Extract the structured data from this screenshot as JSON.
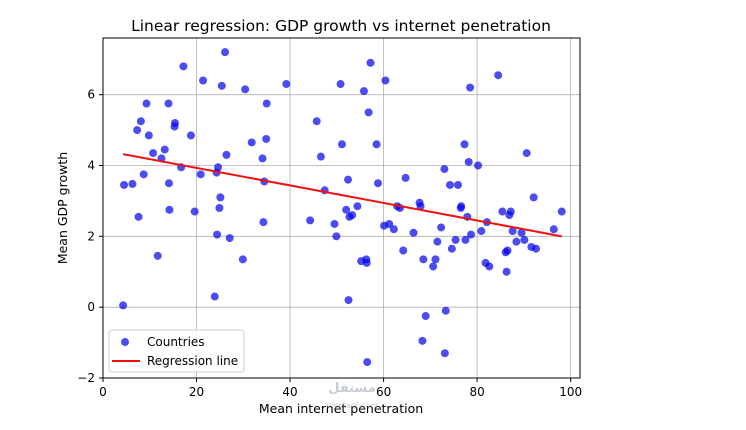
{
  "chart_data": {
    "type": "scatter",
    "title": "Linear regression: GDP growth vs internet penetration",
    "xlabel": "Mean internet penetration",
    "ylabel": "Mean GDP growth",
    "xlim": [
      0,
      102
    ],
    "ylim": [
      -2,
      7.6
    ],
    "xticks": [
      0,
      20,
      40,
      60,
      80,
      100
    ],
    "yticks": [
      -2,
      0,
      2,
      4,
      6
    ],
    "grid": true,
    "legend_position": "lower-left",
    "series": [
      {
        "name": "Countries",
        "kind": "scatter",
        "color": "#0000ee",
        "points": [
          [
            4.3,
            0.05
          ],
          [
            4.5,
            3.45
          ],
          [
            6.3,
            3.48
          ],
          [
            7.3,
            5.0
          ],
          [
            7.6,
            2.55
          ],
          [
            8.1,
            5.25
          ],
          [
            8.7,
            3.75
          ],
          [
            9.3,
            5.75
          ],
          [
            9.8,
            4.85
          ],
          [
            10.7,
            4.35
          ],
          [
            11.7,
            1.45
          ],
          [
            12.5,
            4.2
          ],
          [
            13.2,
            4.45
          ],
          [
            14.0,
            5.75
          ],
          [
            14.1,
            3.5
          ],
          [
            14.2,
            2.75
          ],
          [
            15.3,
            5.1
          ],
          [
            15.4,
            5.2
          ],
          [
            16.7,
            3.95
          ],
          [
            17.2,
            6.8
          ],
          [
            18.8,
            4.85
          ],
          [
            19.6,
            2.7
          ],
          [
            20.9,
            3.75
          ],
          [
            21.4,
            6.4
          ],
          [
            23.9,
            0.3
          ],
          [
            24.3,
            3.8
          ],
          [
            24.4,
            2.05
          ],
          [
            24.6,
            3.95
          ],
          [
            24.9,
            2.8
          ],
          [
            25.1,
            3.1
          ],
          [
            25.4,
            6.25
          ],
          [
            26.1,
            7.2
          ],
          [
            26.4,
            4.3
          ],
          [
            27.1,
            1.95
          ],
          [
            29.9,
            1.35
          ],
          [
            30.4,
            6.15
          ],
          [
            31.8,
            4.65
          ],
          [
            34.1,
            4.2
          ],
          [
            34.3,
            2.4
          ],
          [
            34.5,
            3.55
          ],
          [
            34.9,
            4.75
          ],
          [
            35.0,
            5.75
          ],
          [
            39.2,
            6.3
          ],
          [
            44.3,
            2.45
          ],
          [
            45.7,
            5.25
          ],
          [
            46.6,
            4.25
          ],
          [
            47.4,
            3.3
          ],
          [
            49.5,
            2.35
          ],
          [
            49.9,
            2.0
          ],
          [
            50.8,
            6.3
          ],
          [
            51.1,
            4.6
          ],
          [
            52.0,
            2.75
          ],
          [
            52.4,
            3.6
          ],
          [
            52.5,
            0.2
          ],
          [
            52.7,
            2.55
          ],
          [
            53.3,
            2.6
          ],
          [
            54.4,
            2.85
          ],
          [
            55.2,
            1.3
          ],
          [
            55.8,
            6.1
          ],
          [
            56.3,
            1.35
          ],
          [
            56.4,
            1.25
          ],
          [
            56.5,
            -1.55
          ],
          [
            56.8,
            5.5
          ],
          [
            57.2,
            6.9
          ],
          [
            58.5,
            4.6
          ],
          [
            58.8,
            3.5
          ],
          [
            60.1,
            2.3
          ],
          [
            60.4,
            6.4
          ],
          [
            61.2,
            2.35
          ],
          [
            62.2,
            2.2
          ],
          [
            62.9,
            2.85
          ],
          [
            63.5,
            2.8
          ],
          [
            64.2,
            1.6
          ],
          [
            64.7,
            3.65
          ],
          [
            66.4,
            2.1
          ],
          [
            67.7,
            2.95
          ],
          [
            67.9,
            2.85
          ],
          [
            68.3,
            -0.95
          ],
          [
            68.5,
            1.35
          ],
          [
            69.0,
            -0.25
          ],
          [
            70.6,
            1.15
          ],
          [
            71.1,
            1.35
          ],
          [
            71.5,
            1.85
          ],
          [
            72.3,
            2.25
          ],
          [
            73.0,
            3.9
          ],
          [
            73.1,
            -1.3
          ],
          [
            73.3,
            -0.1
          ],
          [
            74.2,
            3.45
          ],
          [
            74.6,
            1.65
          ],
          [
            75.4,
            1.9
          ],
          [
            75.9,
            3.45
          ],
          [
            76.5,
            2.8
          ],
          [
            76.6,
            2.85
          ],
          [
            77.3,
            4.6
          ],
          [
            77.5,
            1.9
          ],
          [
            77.9,
            2.55
          ],
          [
            78.2,
            4.1
          ],
          [
            78.5,
            6.2
          ],
          [
            78.7,
            2.05
          ],
          [
            80.2,
            4.0
          ],
          [
            80.9,
            2.15
          ],
          [
            81.8,
            1.25
          ],
          [
            82.1,
            2.4
          ],
          [
            82.6,
            1.15
          ],
          [
            84.5,
            6.55
          ],
          [
            85.4,
            2.7
          ],
          [
            86.1,
            1.55
          ],
          [
            86.3,
            1.0
          ],
          [
            86.5,
            1.6
          ],
          [
            86.9,
            2.6
          ],
          [
            87.2,
            2.7
          ],
          [
            87.6,
            2.15
          ],
          [
            88.4,
            1.85
          ],
          [
            89.5,
            2.1
          ],
          [
            90.1,
            1.9
          ],
          [
            90.6,
            4.35
          ],
          [
            91.6,
            1.7
          ],
          [
            92.1,
            3.1
          ],
          [
            92.6,
            1.65
          ],
          [
            96.4,
            2.2
          ],
          [
            98.1,
            2.7
          ]
        ]
      },
      {
        "name": "Regression line",
        "kind": "line",
        "color": "#ee1111",
        "points": [
          [
            4.3,
            4.32
          ],
          [
            98.1,
            2.0
          ]
        ]
      }
    ]
  },
  "watermark": {
    "brand": "مستقل",
    "url": "mostaql.com"
  }
}
